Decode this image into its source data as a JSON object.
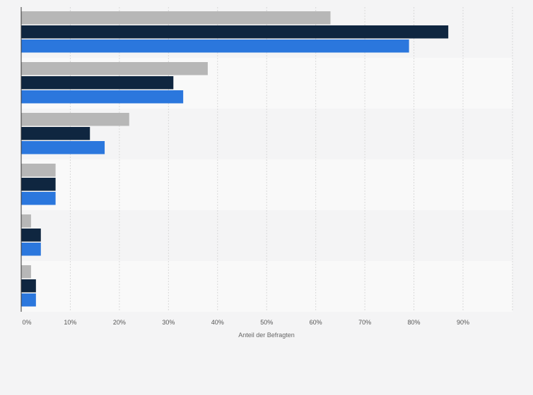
{
  "colors": {
    "page_background": "#f4f4f5",
    "band_dark": "#f4f4f5",
    "band_light": "#f9f9f9",
    "grid": "#d9d9d9",
    "axis": "#333333"
  },
  "chart_data": {
    "type": "bar",
    "orientation": "horizontal",
    "title": "",
    "xlabel": "Anteil der Befragten",
    "ylabel": "",
    "xlim": [
      0,
      100
    ],
    "xticks": [
      0,
      10,
      20,
      30,
      40,
      50,
      60,
      70,
      80,
      90
    ],
    "xtick_labels": [
      "0%",
      "10%",
      "20%",
      "30%",
      "40%",
      "50%",
      "60%",
      "70%",
      "80%",
      "90%"
    ],
    "grid": true,
    "legend": "none",
    "categories": [
      "",
      "",
      "",
      "",
      "",
      ""
    ],
    "series": [
      {
        "color": "#b7b7b7",
        "values": [
          63,
          38,
          22,
          7,
          2,
          2
        ]
      },
      {
        "color": "#0f2640",
        "values": [
          87,
          31,
          14,
          7,
          4,
          3
        ]
      },
      {
        "color": "#2b77dd",
        "values": [
          79,
          33,
          17,
          7,
          4,
          3
        ]
      }
    ]
  }
}
